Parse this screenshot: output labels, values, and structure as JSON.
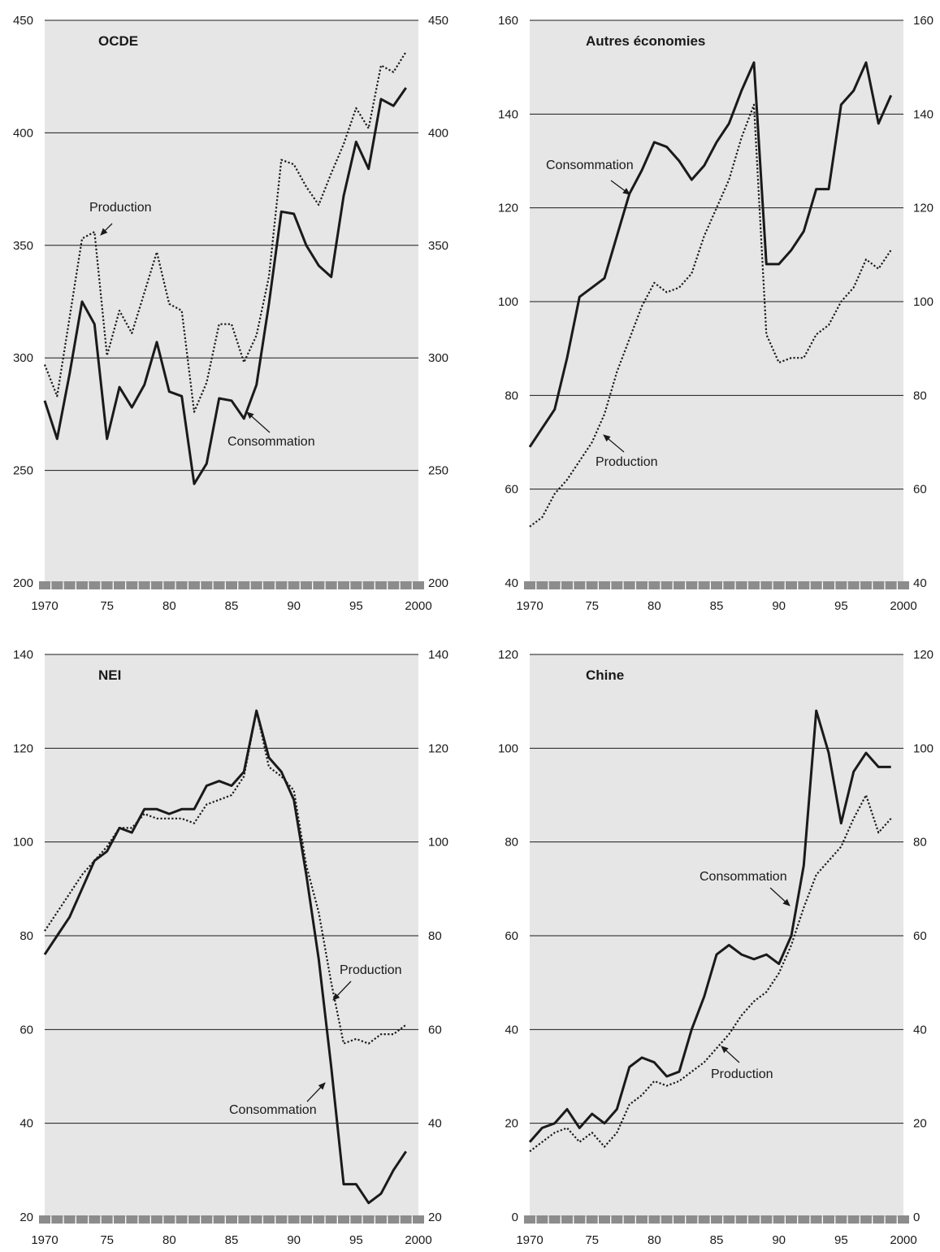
{
  "chart_data": [
    {
      "type": "line",
      "title": "OCDE",
      "ylim": [
        200,
        450
      ],
      "yticks": [
        "200",
        "250",
        "300",
        "350",
        "400",
        "450"
      ],
      "xticks": [
        "1970",
        "75",
        "80",
        "85",
        "90",
        "95",
        "2000"
      ],
      "grid": "horizontal",
      "series": [
        {
          "name": "Production",
          "style": "dotted",
          "x": [
            1970,
            1971,
            1972,
            1973,
            1974,
            1975,
            1976,
            1977,
            1978,
            1979,
            1980,
            1981,
            1982,
            1983,
            1984,
            1985,
            1986,
            1987,
            1988,
            1989,
            1990,
            1991,
            1992,
            1993,
            1994,
            1995,
            1996,
            1997,
            1998,
            1999
          ],
          "values": [
            297,
            283,
            318,
            353,
            356,
            301,
            321,
            311,
            329,
            347,
            324,
            321,
            276,
            289,
            315,
            315,
            298,
            310,
            336,
            388,
            386,
            376,
            368,
            382,
            395,
            411,
            402,
            430,
            427,
            436
          ]
        },
        {
          "name": "Consommation",
          "style": "solid",
          "x": [
            1970,
            1971,
            1972,
            1973,
            1974,
            1975,
            1976,
            1977,
            1978,
            1979,
            1980,
            1981,
            1982,
            1983,
            1984,
            1985,
            1986,
            1987,
            1988,
            1989,
            1990,
            1991,
            1992,
            1993,
            1994,
            1995,
            1996,
            1997,
            1998,
            1999
          ],
          "values": [
            281,
            264,
            293,
            325,
            315,
            264,
            287,
            278,
            288,
            307,
            285,
            283,
            244,
            253,
            282,
            281,
            273,
            288,
            324,
            365,
            364,
            350,
            341,
            336,
            372,
            396,
            384,
            415,
            412,
            420
          ]
        }
      ],
      "annotations": [
        {
          "text": "Production",
          "series": "Production",
          "year": 1974
        },
        {
          "text": "Consommation",
          "series": "Consommation",
          "year": 1986
        }
      ]
    },
    {
      "type": "line",
      "title": "Autres économies",
      "ylim": [
        40,
        160
      ],
      "yticks": [
        "40",
        "60",
        "80",
        "100",
        "120",
        "140",
        "160"
      ],
      "xticks": [
        "1970",
        "75",
        "80",
        "85",
        "90",
        "95",
        "2000"
      ],
      "grid": "horizontal",
      "series": [
        {
          "name": "Consommation",
          "style": "solid",
          "x": [
            1970,
            1971,
            1972,
            1973,
            1974,
            1975,
            1976,
            1977,
            1978,
            1979,
            1980,
            1981,
            1982,
            1983,
            1984,
            1985,
            1986,
            1987,
            1988,
            1989,
            1990,
            1991,
            1992,
            1993,
            1994,
            1995,
            1996,
            1997,
            1998,
            1999
          ],
          "values": [
            69,
            73,
            77,
            88,
            101,
            103,
            105,
            114,
            123,
            128,
            134,
            133,
            130,
            126,
            129,
            134,
            138,
            145,
            151,
            108,
            108,
            111,
            115,
            124,
            124,
            142,
            145,
            151,
            138,
            144
          ]
        },
        {
          "name": "Production",
          "style": "dotted",
          "x": [
            1970,
            1971,
            1972,
            1973,
            1974,
            1975,
            1976,
            1977,
            1978,
            1979,
            1980,
            1981,
            1982,
            1983,
            1984,
            1985,
            1986,
            1987,
            1988,
            1989,
            1990,
            1991,
            1992,
            1993,
            1994,
            1995,
            1996,
            1997,
            1998,
            1999
          ],
          "values": [
            52,
            54,
            59,
            62,
            66,
            70,
            76,
            85,
            92,
            99,
            104,
            102,
            103,
            106,
            114,
            120,
            126,
            135,
            142,
            93,
            87,
            88,
            88,
            93,
            95,
            100,
            103,
            109,
            107,
            111
          ]
        }
      ],
      "annotations": [
        {
          "text": "Consommation",
          "series": "Consommation",
          "year": 1977.8
        },
        {
          "text": "Production",
          "series": "Production",
          "year": 1975.5
        }
      ]
    },
    {
      "type": "line",
      "title": "NEI",
      "ylim": [
        20,
        140
      ],
      "yticks": [
        "20",
        "40",
        "60",
        "80",
        "100",
        "120",
        "140"
      ],
      "xticks": [
        "1970",
        "75",
        "80",
        "85",
        "90",
        "95",
        "2000"
      ],
      "grid": "horizontal",
      "series": [
        {
          "name": "Production",
          "style": "dotted",
          "x": [
            1970,
            1971,
            1972,
            1973,
            1974,
            1975,
            1976,
            1977,
            1978,
            1979,
            1980,
            1981,
            1982,
            1983,
            1984,
            1985,
            1986,
            1987,
            1988,
            1989,
            1990,
            1991,
            1992,
            1993,
            1994,
            1995,
            1996,
            1997,
            1998,
            1999
          ],
          "values": [
            81,
            85,
            89,
            93,
            96,
            99,
            103,
            103,
            106,
            105,
            105,
            105,
            104,
            108,
            109,
            110,
            114,
            128,
            116,
            114,
            111,
            95,
            85,
            70,
            57,
            58,
            57,
            59,
            59,
            61
          ]
        },
        {
          "name": "Consommation",
          "style": "solid",
          "x": [
            1970,
            1971,
            1972,
            1973,
            1974,
            1975,
            1976,
            1977,
            1978,
            1979,
            1980,
            1981,
            1982,
            1983,
            1984,
            1985,
            1986,
            1987,
            1988,
            1989,
            1990,
            1991,
            1992,
            1993,
            1994,
            1995,
            1996,
            1997,
            1998,
            1999
          ],
          "values": [
            76,
            80,
            84,
            90,
            96,
            98,
            103,
            102,
            107,
            107,
            106,
            107,
            107,
            112,
            113,
            112,
            115,
            128,
            118,
            115,
            109,
            93,
            75,
            52,
            27,
            27,
            23,
            25,
            30,
            34
          ]
        }
      ],
      "annotations": [
        {
          "text": "Production",
          "series": "Production",
          "year": 1993
        },
        {
          "text": "Consommation",
          "series": "Consommation",
          "year": 1993
        }
      ]
    },
    {
      "type": "line",
      "title": "Chine",
      "ylim": [
        0,
        120
      ],
      "yticks": [
        "0",
        "20",
        "40",
        "60",
        "80",
        "100",
        "120"
      ],
      "xticks": [
        "1970",
        "75",
        "80",
        "85",
        "90",
        "95",
        "2000"
      ],
      "grid": "horizontal",
      "series": [
        {
          "name": "Consommation",
          "style": "solid",
          "x": [
            1970,
            1971,
            1972,
            1973,
            1974,
            1975,
            1976,
            1977,
            1978,
            1979,
            1980,
            1981,
            1982,
            1983,
            1984,
            1985,
            1986,
            1987,
            1988,
            1989,
            1990,
            1991,
            1992,
            1993,
            1994,
            1995,
            1996,
            1997,
            1998,
            1999
          ],
          "values": [
            16,
            19,
            20,
            23,
            19,
            22,
            20,
            23,
            32,
            34,
            33,
            30,
            31,
            40,
            47,
            56,
            58,
            56,
            55,
            56,
            54,
            60,
            75,
            108,
            99,
            84,
            95,
            99,
            96,
            96
          ]
        },
        {
          "name": "Production",
          "style": "dotted",
          "x": [
            1970,
            1971,
            1972,
            1973,
            1974,
            1975,
            1976,
            1977,
            1978,
            1979,
            1980,
            1981,
            1982,
            1983,
            1984,
            1985,
            1986,
            1987,
            1988,
            1989,
            1990,
            1991,
            1992,
            1993,
            1994,
            1995,
            1996,
            1997,
            1998,
            1999
          ],
          "values": [
            14,
            16,
            18,
            19,
            16,
            18,
            15,
            18,
            24,
            26,
            29,
            28,
            29,
            31,
            33,
            36,
            39,
            43,
            46,
            48,
            52,
            58,
            66,
            73,
            76,
            79,
            85,
            90,
            82,
            85
          ]
        }
      ],
      "annotations": [
        {
          "text": "Consommation",
          "series": "Consommation",
          "year": 1991
        },
        {
          "text": "Production",
          "series": "Production",
          "year": 1986.5
        }
      ]
    }
  ]
}
